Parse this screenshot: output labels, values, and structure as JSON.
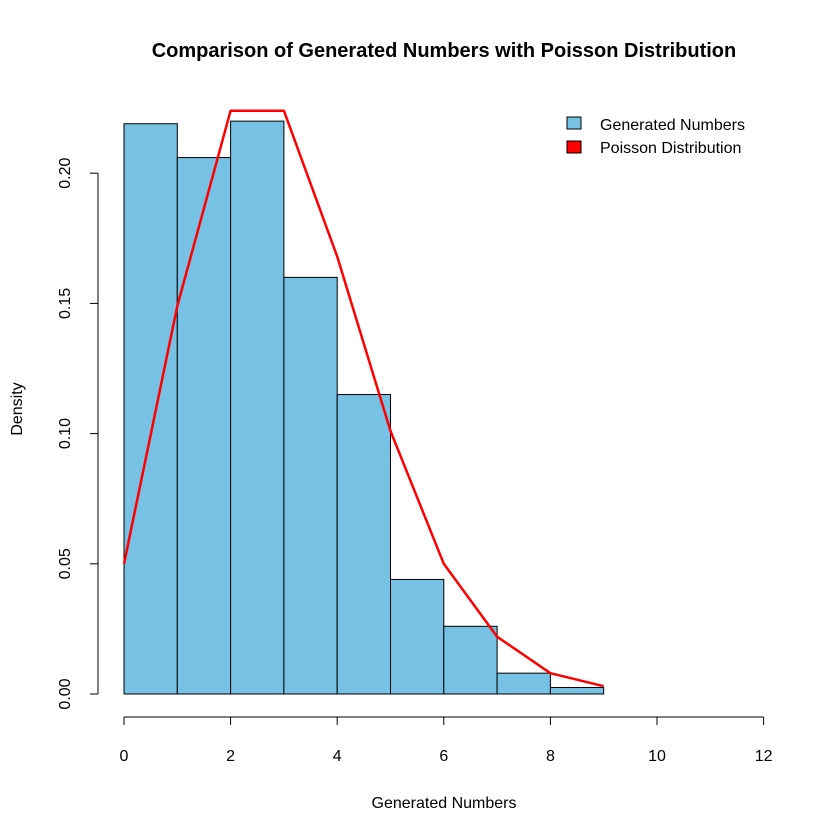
{
  "chart_data": {
    "type": "bar",
    "title": "Comparison of Generated Numbers with Poisson Distribution",
    "xlabel": "Generated Numbers",
    "ylabel": "Density",
    "xlim": [
      0,
      12
    ],
    "ylim": [
      0,
      0.22
    ],
    "x_ticks": [
      "0",
      "2",
      "4",
      "6",
      "8",
      "10",
      "12"
    ],
    "y_ticks": [
      "0.00",
      "0.05",
      "0.10",
      "0.15",
      "0.20"
    ],
    "bins": [
      [
        0,
        1
      ],
      [
        1,
        2
      ],
      [
        2,
        3
      ],
      [
        3,
        4
      ],
      [
        4,
        5
      ],
      [
        5,
        6
      ],
      [
        6,
        7
      ],
      [
        7,
        8
      ],
      [
        8,
        9
      ]
    ],
    "series": [
      {
        "name": "Generated Numbers",
        "type": "histogram",
        "color": "#77c1e5",
        "values": [
          0.219,
          0.206,
          0.22,
          0.16,
          0.115,
          0.044,
          0.026,
          0.008,
          0.0025
        ]
      },
      {
        "name": "Poisson Distribution",
        "type": "line",
        "color": "#ff0000",
        "x": [
          0,
          1,
          2,
          3,
          4,
          5,
          6,
          7,
          8,
          9
        ],
        "values": [
          0.05,
          0.149,
          0.224,
          0.224,
          0.168,
          0.101,
          0.05,
          0.022,
          0.008,
          0.003
        ]
      }
    ],
    "legend": {
      "position": "top-right",
      "entries": [
        "Generated Numbers",
        "Poisson Distribution"
      ]
    }
  }
}
